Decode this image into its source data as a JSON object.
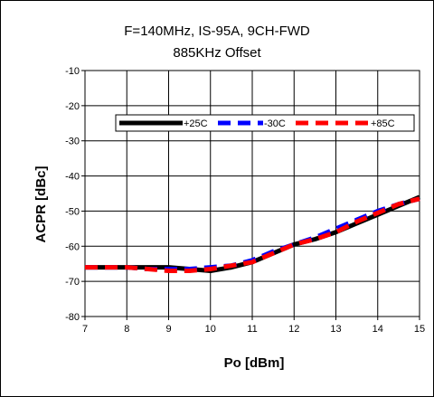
{
  "chart_data": {
    "type": "line",
    "title": "F=140MHz, IS-95A, 9CH-FWD",
    "subtitle": "885KHz Offset",
    "xlabel": "Po [dBm]",
    "ylabel": "ACPR [dBc]",
    "xlim": [
      7,
      15
    ],
    "ylim": [
      -80,
      -10
    ],
    "x_ticks": [
      "7",
      "8",
      "9",
      "10",
      "11",
      "12",
      "13",
      "14",
      "15"
    ],
    "y_ticks": [
      "-10",
      "-20",
      "-30",
      "-40",
      "-50",
      "-60",
      "-70",
      "-80"
    ],
    "grid": true,
    "legend_position": "top",
    "series": [
      {
        "name": "+25C",
        "color": "#000000",
        "style": "solid",
        "x": [
          7,
          7.5,
          8,
          8.5,
          9,
          9.5,
          10,
          10.5,
          11,
          11.5,
          12,
          12.5,
          13,
          13.5,
          14,
          14.5,
          15
        ],
        "y": [
          -66,
          -66,
          -66,
          -66,
          -66,
          -66.5,
          -67,
          -66,
          -64.5,
          -62,
          -59.5,
          -58,
          -56,
          -53.5,
          -51,
          -48.5,
          -46
        ]
      },
      {
        "name": "-30C",
        "color": "#0000ff",
        "style": "dashed",
        "x": [
          7,
          7.5,
          8,
          8.5,
          9,
          9.5,
          10,
          10.5,
          11,
          11.5,
          12,
          12.5,
          13,
          13.5,
          14,
          14.5,
          15
        ],
        "y": [
          -66,
          -66,
          -66,
          -66.5,
          -66.5,
          -66.5,
          -66,
          -65.5,
          -64,
          -61.5,
          -59.5,
          -57.5,
          -55,
          -52.5,
          -50,
          -48,
          -46.5
        ]
      },
      {
        "name": "+85C",
        "color": "#ff0000",
        "style": "dashed",
        "x": [
          7,
          7.5,
          8,
          8.5,
          9,
          9.5,
          10,
          10.5,
          11,
          11.5,
          12,
          12.5,
          13,
          13.5,
          14,
          14.5,
          15
        ],
        "y": [
          -66,
          -66,
          -66,
          -66.5,
          -67,
          -67,
          -66.5,
          -65.5,
          -64.5,
          -62,
          -59.5,
          -58,
          -56,
          -53,
          -50.5,
          -48,
          -46.5
        ]
      }
    ]
  }
}
